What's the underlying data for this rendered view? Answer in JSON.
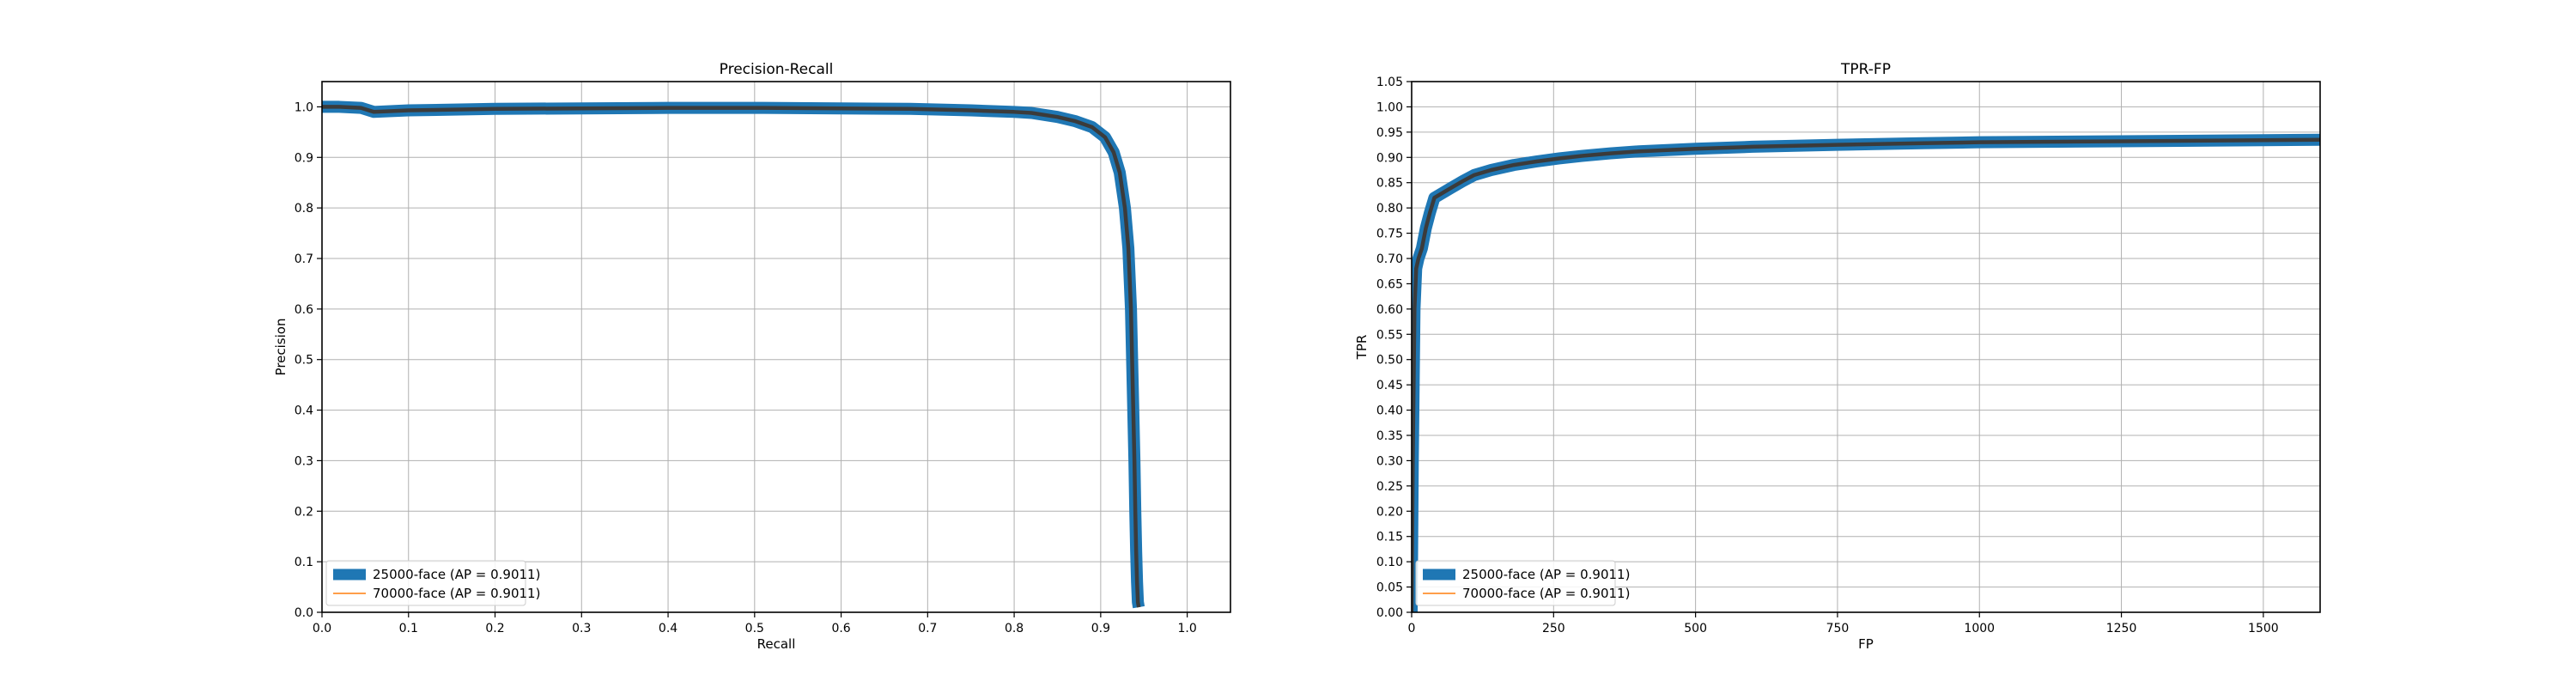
{
  "colors": {
    "series_thick": "#1f77b4",
    "series_thin": "#ff7f0e",
    "inner_line": "#3b3b3b",
    "grid": "#b0b0b0"
  },
  "chart_data": [
    {
      "type": "line",
      "title": "Precision-Recall",
      "xlabel": "Recall",
      "ylabel": "Precision",
      "xlim": [
        0.0,
        1.05
      ],
      "ylim": [
        0.0,
        1.05
      ],
      "xticks": [
        0.0,
        0.1,
        0.2,
        0.3,
        0.4,
        0.5,
        0.6,
        0.7,
        0.8,
        0.9,
        1.0
      ],
      "xtick_labels": [
        "0.0",
        "0.1",
        "0.2",
        "0.3",
        "0.4",
        "0.5",
        "0.6",
        "0.7",
        "0.8",
        "0.9",
        "1.0"
      ],
      "yticks": [
        0.0,
        0.1,
        0.2,
        0.3,
        0.4,
        0.5,
        0.6,
        0.7,
        0.8,
        0.9,
        1.0
      ],
      "ytick_labels": [
        "0.0",
        "0.1",
        "0.2",
        "0.3",
        "0.4",
        "0.5",
        "0.6",
        "0.7",
        "0.8",
        "0.9",
        "1.0"
      ],
      "grid": true,
      "legend_position": "lower-left",
      "series": [
        {
          "name": "25000-face (AP = 0.9011)",
          "style": "thick",
          "x": [
            0.0,
            0.02,
            0.045,
            0.06,
            0.1,
            0.2,
            0.3,
            0.4,
            0.5,
            0.6,
            0.68,
            0.75,
            0.8,
            0.82,
            0.85,
            0.87,
            0.89,
            0.905,
            0.915,
            0.922,
            0.928,
            0.932,
            0.935,
            0.937,
            0.939,
            0.94,
            0.941,
            0.942,
            0.943,
            0.944
          ],
          "y": [
            1.0,
            1.0,
            0.998,
            0.99,
            0.993,
            0.996,
            0.997,
            0.998,
            0.998,
            0.997,
            0.996,
            0.993,
            0.99,
            0.988,
            0.98,
            0.972,
            0.96,
            0.94,
            0.91,
            0.87,
            0.8,
            0.72,
            0.6,
            0.45,
            0.3,
            0.2,
            0.12,
            0.06,
            0.02,
            0.01
          ]
        },
        {
          "name": "70000-face (AP = 0.9011)",
          "style": "thin",
          "x": [
            0.0,
            0.02,
            0.045,
            0.06,
            0.1,
            0.2,
            0.3,
            0.4,
            0.5,
            0.6,
            0.68,
            0.75,
            0.8,
            0.82,
            0.85,
            0.87,
            0.89,
            0.905,
            0.915,
            0.922,
            0.928,
            0.932,
            0.935,
            0.937,
            0.939,
            0.94,
            0.941,
            0.942,
            0.943,
            0.944
          ],
          "y": [
            1.0,
            1.0,
            0.998,
            0.99,
            0.993,
            0.996,
            0.997,
            0.998,
            0.998,
            0.997,
            0.996,
            0.993,
            0.99,
            0.988,
            0.98,
            0.972,
            0.96,
            0.94,
            0.91,
            0.87,
            0.8,
            0.72,
            0.6,
            0.45,
            0.3,
            0.2,
            0.12,
            0.06,
            0.02,
            0.01
          ]
        }
      ]
    },
    {
      "type": "line",
      "title": "TPR-FP",
      "xlabel": "FP",
      "ylabel": "TPR",
      "xlim": [
        0,
        1600
      ],
      "ylim": [
        0.0,
        1.05
      ],
      "xticks": [
        0,
        250,
        500,
        750,
        1000,
        1250,
        1500
      ],
      "xtick_labels": [
        "0",
        "250",
        "500",
        "750",
        "1000",
        "1250",
        "1500"
      ],
      "yticks": [
        0.0,
        0.05,
        0.1,
        0.15,
        0.2,
        0.25,
        0.3,
        0.35,
        0.4,
        0.45,
        0.5,
        0.55,
        0.6,
        0.65,
        0.7,
        0.75,
        0.8,
        0.85,
        0.9,
        0.95,
        1.0,
        1.05
      ],
      "ytick_labels": [
        "0.00",
        "0.05",
        "0.10",
        "0.15",
        "0.20",
        "0.25",
        "0.30",
        "0.35",
        "0.40",
        "0.45",
        "0.50",
        "0.55",
        "0.60",
        "0.65",
        "0.70",
        "0.75",
        "0.80",
        "0.85",
        "0.90",
        "0.95",
        "1.00",
        "1.05"
      ],
      "grid": true,
      "legend_position": "lower-left",
      "series": [
        {
          "name": "25000-face (AP = 0.9011)",
          "style": "thick",
          "x": [
            0,
            2,
            5,
            8,
            12,
            18,
            25,
            32,
            40,
            55,
            70,
            90,
            110,
            140,
            180,
            220,
            260,
            300,
            350,
            400,
            500,
            600,
            750,
            900,
            1000,
            1250,
            1500,
            1600
          ],
          "y": [
            0.0,
            0.3,
            0.6,
            0.68,
            0.7,
            0.72,
            0.76,
            0.79,
            0.82,
            0.83,
            0.84,
            0.853,
            0.865,
            0.875,
            0.885,
            0.892,
            0.898,
            0.903,
            0.908,
            0.912,
            0.917,
            0.921,
            0.925,
            0.928,
            0.93,
            0.932,
            0.934,
            0.935
          ]
        },
        {
          "name": "70000-face (AP = 0.9011)",
          "style": "thin",
          "x": [
            0,
            2,
            5,
            8,
            12,
            18,
            25,
            32,
            40,
            55,
            70,
            90,
            110,
            140,
            180,
            220,
            260,
            300,
            350,
            400,
            500,
            600,
            750,
            900,
            1000,
            1250,
            1500,
            1600
          ],
          "y": [
            0.0,
            0.3,
            0.6,
            0.68,
            0.7,
            0.72,
            0.76,
            0.79,
            0.82,
            0.83,
            0.84,
            0.853,
            0.865,
            0.875,
            0.885,
            0.892,
            0.898,
            0.903,
            0.908,
            0.912,
            0.917,
            0.921,
            0.925,
            0.928,
            0.93,
            0.932,
            0.934,
            0.935
          ]
        }
      ]
    }
  ]
}
